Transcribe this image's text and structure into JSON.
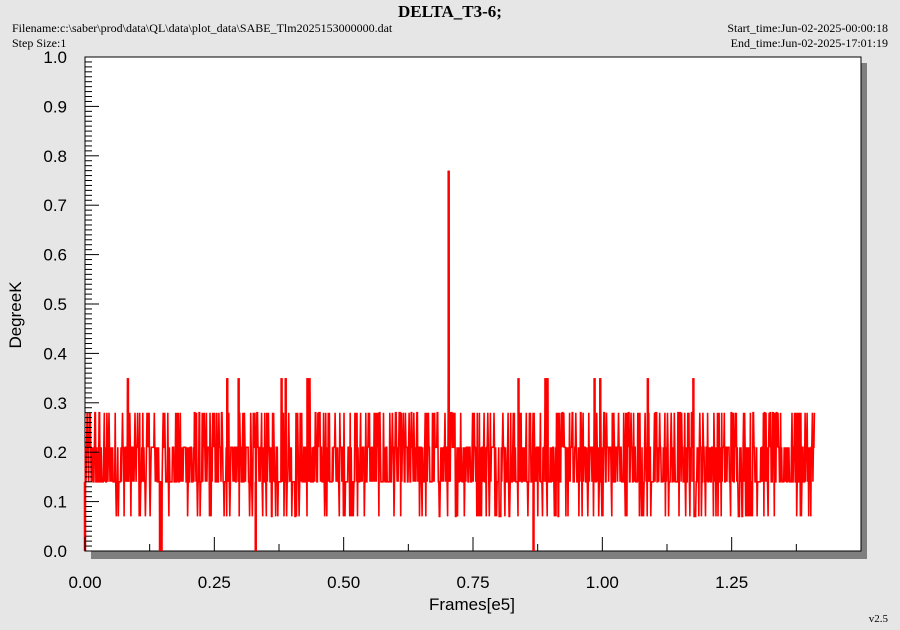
{
  "header": {
    "title": "DELTA_T3-6;",
    "filename": "Filename:c:\\saber\\prod\\data\\QL\\data\\plot_data\\SABE_Tlm2025153000000.dat",
    "step_size": "Step Size:1",
    "start_time": "Start_time:Jun-02-2025-00:00:18",
    "end_time": "End_time:Jun-02-2025-17:01:19",
    "version": "v2.5"
  },
  "colors": {
    "series": "#ff0000",
    "plot_bg": "#ffffff",
    "frame_bg": "#e6e6e6",
    "shadow": "#7f7f7f"
  },
  "chart_data": {
    "type": "line",
    "title": "DELTA_T3-6;",
    "xlabel": "Frames[e5]",
    "ylabel": "DegreeK",
    "xlim": [
      0.0,
      1.5
    ],
    "ylim": [
      0.0,
      1.0
    ],
    "xticks": [
      "0.00",
      "0.25",
      "0.50",
      "0.75",
      "1.00",
      "1.25"
    ],
    "xtick_values": [
      0.0,
      0.25,
      0.5,
      0.75,
      1.0,
      1.25
    ],
    "yticks": [
      "0.0",
      "0.1",
      "0.2",
      "0.3",
      "0.4",
      "0.5",
      "0.6",
      "0.7",
      "0.8",
      "0.9",
      "1.0"
    ],
    "ytick_values": [
      0.0,
      0.1,
      0.2,
      0.3,
      0.4,
      0.5,
      0.6,
      0.7,
      0.8,
      0.9,
      1.0
    ],
    "grid": false,
    "legend": "none",
    "series": [
      {
        "x_range": [
          0.0,
          1.41
        ],
        "typical_range": [
          0.14,
          0.28
        ],
        "values_band": [
          0.07,
          0.14,
          0.21,
          0.28
        ],
        "spikes": [
          {
            "x": 0.083,
            "y": 0.35
          },
          {
            "x": 0.275,
            "y": 0.35
          },
          {
            "x": 0.297,
            "y": 0.35
          },
          {
            "x": 0.38,
            "y": 0.35
          },
          {
            "x": 0.388,
            "y": 0.35
          },
          {
            "x": 0.43,
            "y": 0.35
          },
          {
            "x": 0.434,
            "y": 0.35
          },
          {
            "x": 0.703,
            "y": 0.77
          },
          {
            "x": 0.838,
            "y": 0.35
          },
          {
            "x": 0.89,
            "y": 0.35
          },
          {
            "x": 0.894,
            "y": 0.35
          },
          {
            "x": 0.985,
            "y": 0.35
          },
          {
            "x": 0.996,
            "y": 0.35
          },
          {
            "x": 1.088,
            "y": 0.35
          },
          {
            "x": 1.176,
            "y": 0.35
          }
        ],
        "dips": [
          {
            "x": 0.0,
            "y": 0.0
          },
          {
            "x": 0.145,
            "y": 0.0
          },
          {
            "x": 0.148,
            "y": 0.0
          },
          {
            "x": 0.33,
            "y": 0.0
          },
          {
            "x": 0.867,
            "y": 0.0
          }
        ]
      }
    ]
  }
}
